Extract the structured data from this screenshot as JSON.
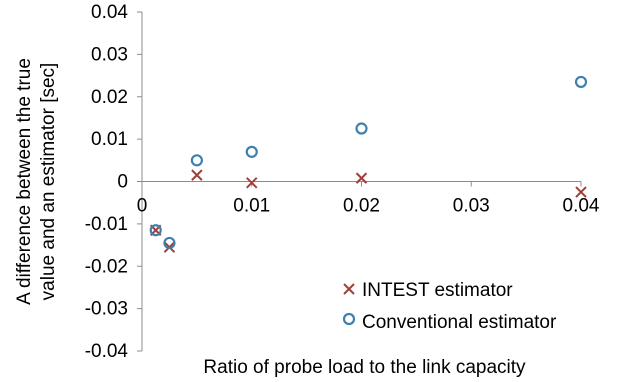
{
  "chart_data": {
    "type": "scatter",
    "title": "",
    "xlabel": "Ratio of probe load to the link capacity",
    "ylabel_lines": [
      "A difference between the true",
      "value and an estimator [sec]"
    ],
    "xlim": [
      0,
      0.04
    ],
    "ylim": [
      -0.04,
      0.04
    ],
    "x_ticks": [
      0,
      0.01,
      0.02,
      0.03,
      0.04
    ],
    "x_tick_labels": [
      "0",
      "0.01",
      "0.02",
      "0.03",
      "0.04"
    ],
    "y_ticks": [
      0.04,
      0.03,
      0.02,
      0.01,
      0,
      -0.01,
      -0.02,
      -0.03,
      -0.04
    ],
    "y_tick_labels": [
      "0.04",
      "0.03",
      "0.02",
      "0.01",
      "0",
      "-0.01",
      "-0.02",
      "-0.03",
      "-0.04"
    ],
    "grid": false,
    "legend_position": "bottom-right",
    "series": [
      {
        "name": "INTEST estimator",
        "marker": "x",
        "color": "#a0403c",
        "points": [
          [
            0.00125,
            -0.0115
          ],
          [
            0.0025,
            -0.0155
          ],
          [
            0.005,
            0.0015
          ],
          [
            0.01,
            -0.0003
          ],
          [
            0.02,
            0.0008
          ],
          [
            0.04,
            -0.0025
          ]
        ]
      },
      {
        "name": "Conventional estimator",
        "marker": "circle",
        "color": "#3f7fad",
        "points": [
          [
            0.00125,
            -0.0115
          ],
          [
            0.0025,
            -0.0145
          ],
          [
            0.005,
            0.005
          ],
          [
            0.01,
            0.007
          ],
          [
            0.02,
            0.0125
          ],
          [
            0.04,
            0.0235
          ]
        ]
      }
    ]
  }
}
